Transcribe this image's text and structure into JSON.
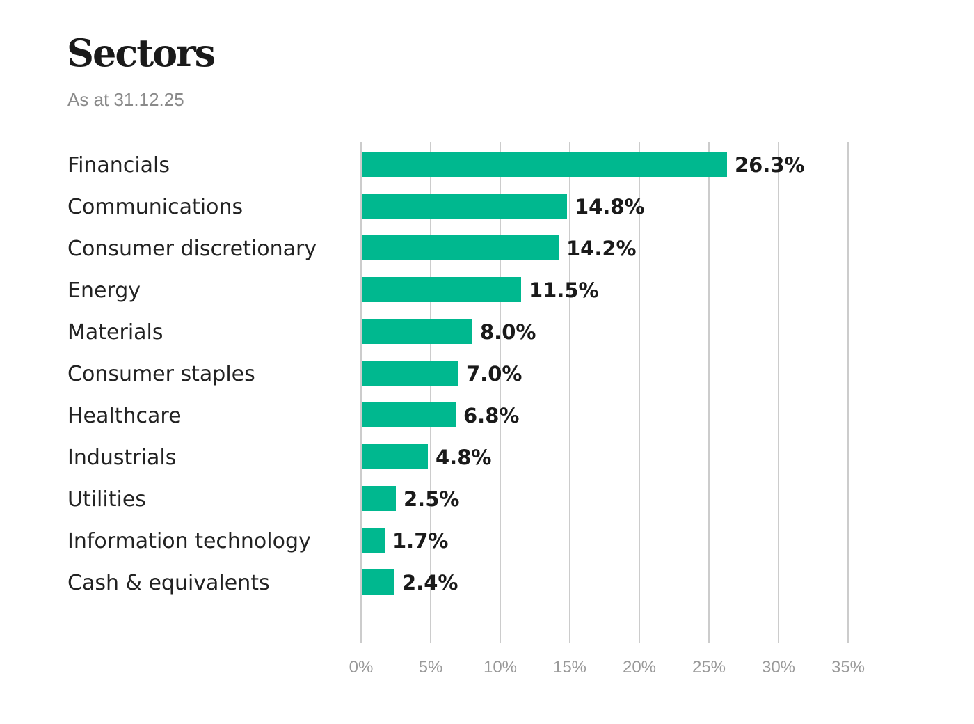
{
  "chart_data": {
    "type": "bar",
    "orientation": "horizontal",
    "title": "Sectors",
    "subtitle": "As at 31.12.25",
    "categories": [
      "Financials",
      "Communications",
      "Consumer discretionary",
      "Energy",
      "Materials",
      "Consumer staples",
      "Healthcare",
      "Industrials",
      "Utilities",
      "Information technology",
      "Cash & equivalents"
    ],
    "values": [
      26.3,
      14.8,
      14.2,
      11.5,
      8.0,
      7.0,
      6.8,
      4.8,
      2.5,
      1.7,
      2.4
    ],
    "data_labels": [
      "26.3%",
      "14.8%",
      "14.2%",
      "11.5%",
      "8.0%",
      "7.0%",
      "6.8%",
      "4.8%",
      "2.5%",
      "1.7%",
      "2.4%"
    ],
    "xlim": [
      0,
      35
    ],
    "x_ticks": [
      0,
      5,
      10,
      15,
      20,
      25,
      30,
      35
    ],
    "x_tick_labels": [
      "0%",
      "5%",
      "10%",
      "15%",
      "20%",
      "25%",
      "30%",
      "35%"
    ],
    "grid": "vertical",
    "bar_color": "#00b88f",
    "grid_color": "#cccccc"
  }
}
